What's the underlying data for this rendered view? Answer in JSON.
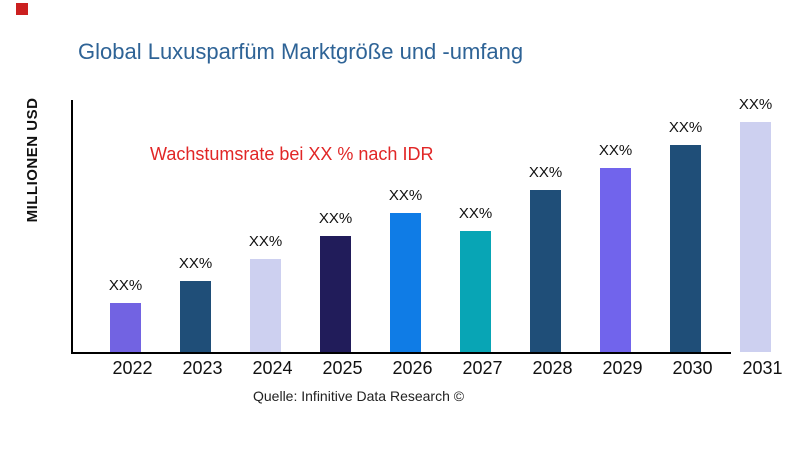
{
  "title": {
    "text": "Global Luxusparfüm Marktgröße und -umfang",
    "color": "#2e6396"
  },
  "y_axis_label": "MILLIONEN USD",
  "annotation": {
    "text": "Wachstumsrate bei XX % nach IDR",
    "color": "#e12626"
  },
  "source": {
    "text": "Quelle: Infinitive Data Research ©"
  },
  "marker": {
    "color": "#cb2020"
  },
  "axes": {
    "color": "#000000"
  },
  "chart_data": {
    "type": "bar",
    "title": "Global Luxusparfüm Marktgröße und -umfang",
    "xlabel": "",
    "ylabel": "MILLIONEN USD",
    "categories": [
      "2022",
      "2023",
      "2024",
      "2025",
      "2026",
      "2027",
      "2028",
      "2029",
      "2030",
      "2031"
    ],
    "values": [
      49,
      71,
      93,
      116,
      139,
      121,
      162,
      184,
      207,
      230
    ],
    "values_unit": "relative-height (numeric axis values not shown in chart)",
    "value_labels": [
      "XX%",
      "XX%",
      "XX%",
      "XX%",
      "XX%",
      "XX%",
      "XX%",
      "XX%",
      "XX%",
      "XX%"
    ],
    "bar_colors": [
      "#7263e2",
      "#1f4e78",
      "#cdd0f0",
      "#211c5a",
      "#0f7ce6",
      "#08a5b5",
      "#1f4e78",
      "#7164ec",
      "#1f4e78",
      "#cdd0f0"
    ],
    "annotation": "Wachstumsrate bei XX % nach IDR",
    "source": "Quelle: Infinitive Data Research ©",
    "grid": false,
    "legend": "none"
  }
}
